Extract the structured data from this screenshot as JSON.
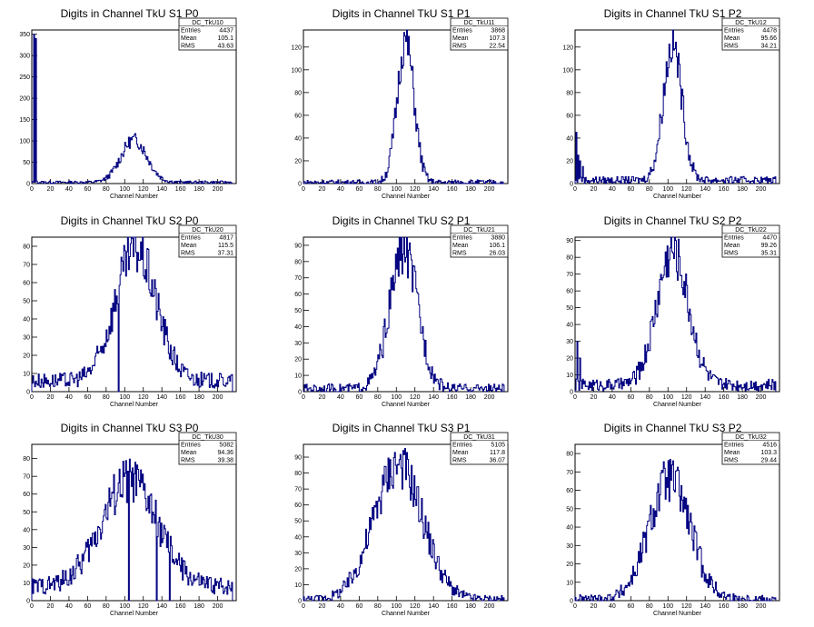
{
  "figure": {
    "background": "#ffffff",
    "line_color": "#000080",
    "axis_color": "#000000"
  },
  "chart_data": [
    {
      "type": "histogram",
      "title": "Digits in Channel TkU S1 P0",
      "xlabel": "Channel Number",
      "xlim": [
        0,
        220
      ],
      "ylim": [
        0,
        360
      ],
      "yticks": [
        0,
        50,
        100,
        150,
        200,
        250,
        300,
        350
      ],
      "xticks": [
        0,
        20,
        40,
        60,
        80,
        100,
        120,
        140,
        160,
        180,
        200
      ],
      "stats": {
        "name": "DC_TkU10",
        "Entries": "4437",
        "Mean": "105.1",
        "RMS": "43.63"
      },
      "profile": {
        "peak": 100,
        "center": 110,
        "sigma": 14,
        "base": 3,
        "spikes": [
          [
            2,
            350
          ],
          [
            4,
            340
          ]
        ]
      }
    },
    {
      "type": "histogram",
      "title": "Digits in Channel TkU S1 P1",
      "xlabel": "Channel Number",
      "xlim": [
        0,
        220
      ],
      "ylim": [
        0,
        135
      ],
      "yticks": [
        0,
        20,
        40,
        60,
        80,
        100,
        120
      ],
      "xticks": [
        0,
        20,
        40,
        60,
        80,
        100,
        120,
        140,
        160,
        180,
        200
      ],
      "stats": {
        "name": "DC_TkU11",
        "Entries": "3868",
        "Mean": "107.3",
        "RMS": "22.54"
      },
      "profile": {
        "peak": 125,
        "center": 110,
        "sigma": 9,
        "base": 1,
        "spikes": []
      }
    },
    {
      "type": "histogram",
      "title": "Digits in Channel TkU S1 P2",
      "xlabel": "Channel Number",
      "xlim": [
        0,
        220
      ],
      "ylim": [
        0,
        135
      ],
      "yticks": [
        0,
        20,
        40,
        60,
        80,
        100,
        120
      ],
      "xticks": [
        0,
        20,
        40,
        60,
        80,
        100,
        120,
        140,
        160,
        180,
        200
      ],
      "stats": {
        "name": "DC_TkU12",
        "Entries": "4478",
        "Mean": "95.66",
        "RMS": "34.21"
      },
      "profile": {
        "peak": 120,
        "center": 105,
        "sigma": 10,
        "base": 3,
        "spikes": [
          [
            1,
            45
          ],
          [
            3,
            25
          ],
          [
            5,
            20
          ],
          [
            8,
            15
          ]
        ]
      }
    },
    {
      "type": "histogram",
      "title": "Digits in Channel TkU S2 P0",
      "xlabel": "Channel Number",
      "xlim": [
        0,
        220
      ],
      "ylim": [
        0,
        85
      ],
      "yticks": [
        0,
        10,
        20,
        30,
        40,
        50,
        60,
        70,
        80
      ],
      "xticks": [
        0,
        20,
        40,
        60,
        80,
        100,
        120,
        140,
        160,
        180,
        200
      ],
      "stats": {
        "name": "DC_TkU20",
        "Entries": "4817",
        "Mean": "115.5",
        "RMS": "37.31"
      },
      "profile": {
        "peak": 72,
        "center": 112,
        "sigma": 22,
        "base": 6,
        "spikes": [
          [
            93,
            0
          ]
        ]
      }
    },
    {
      "type": "histogram",
      "title": "Digits in Channel TkU S2 P1",
      "xlabel": "Channel Number",
      "xlim": [
        0,
        220
      ],
      "ylim": [
        0,
        95
      ],
      "yticks": [
        0,
        10,
        20,
        30,
        40,
        50,
        60,
        70,
        80,
        90
      ],
      "xticks": [
        0,
        20,
        40,
        60,
        80,
        100,
        120,
        140,
        160,
        180,
        200
      ],
      "stats": {
        "name": "DC_TkU21",
        "Entries": "3880",
        "Mean": "106.1",
        "RMS": "26.03"
      },
      "profile": {
        "peak": 85,
        "center": 108,
        "sigma": 15,
        "base": 2,
        "spikes": []
      }
    },
    {
      "type": "histogram",
      "title": "Digits in Channel TkU S2 P2",
      "xlabel": "Channel Number",
      "xlim": [
        0,
        220
      ],
      "ylim": [
        0,
        92
      ],
      "yticks": [
        0,
        10,
        20,
        30,
        40,
        50,
        60,
        70,
        80,
        90
      ],
      "xticks": [
        0,
        20,
        40,
        60,
        80,
        100,
        120,
        140,
        160,
        180,
        200
      ],
      "stats": {
        "name": "DC_TkU22",
        "Entries": "4470",
        "Mean": "99.26",
        "RMS": "35.31"
      },
      "profile": {
        "peak": 80,
        "center": 105,
        "sigma": 17,
        "base": 4,
        "spikes": [
          [
            2,
            30
          ],
          [
            5,
            20
          ]
        ]
      }
    },
    {
      "type": "histogram",
      "title": "Digits in Channel TkU S3 P0",
      "xlabel": "Channel Number",
      "xlim": [
        0,
        220
      ],
      "ylim": [
        0,
        88
      ],
      "yticks": [
        0,
        10,
        20,
        30,
        40,
        50,
        60,
        70,
        80
      ],
      "xticks": [
        0,
        20,
        40,
        60,
        80,
        100,
        120,
        140,
        160,
        180,
        200
      ],
      "stats": {
        "name": "DC_TkU30",
        "Entries": "5082",
        "Mean": "94.36",
        "RMS": "39.38"
      },
      "profile": {
        "peak": 60,
        "center": 105,
        "sigma": 30,
        "base": 8,
        "spikes": [
          [
            104,
            0
          ],
          [
            134,
            0
          ],
          [
            148,
            0
          ]
        ]
      }
    },
    {
      "type": "histogram",
      "title": "Digits in Channel TkU S3 P1",
      "xlabel": "Channel Number",
      "xlim": [
        0,
        220
      ],
      "ylim": [
        0,
        98
      ],
      "yticks": [
        0,
        10,
        20,
        30,
        40,
        50,
        60,
        70,
        80,
        90
      ],
      "xticks": [
        0,
        20,
        40,
        60,
        80,
        100,
        120,
        140,
        160,
        180,
        200
      ],
      "stats": {
        "name": "DC_TkU31",
        "Entries": "5105",
        "Mean": "117.8",
        "RMS": "36.07"
      },
      "profile": {
        "peak": 85,
        "center": 102,
        "sigma": 26,
        "base": 1,
        "spikes": []
      }
    },
    {
      "type": "histogram",
      "title": "Digits in Channel TkU S3 P2",
      "xlabel": "Channel Number",
      "xlim": [
        0,
        220
      ],
      "ylim": [
        0,
        85
      ],
      "yticks": [
        0,
        10,
        20,
        30,
        40,
        50,
        60,
        70,
        80
      ],
      "xticks": [
        0,
        20,
        40,
        60,
        80,
        100,
        120,
        140,
        160,
        180,
        200
      ],
      "stats": {
        "name": "DC_TkU32",
        "Entries": "4516",
        "Mean": "103.3",
        "RMS": "29.44"
      },
      "profile": {
        "peak": 65,
        "center": 102,
        "sigma": 22,
        "base": 1,
        "spikes": []
      }
    }
  ]
}
